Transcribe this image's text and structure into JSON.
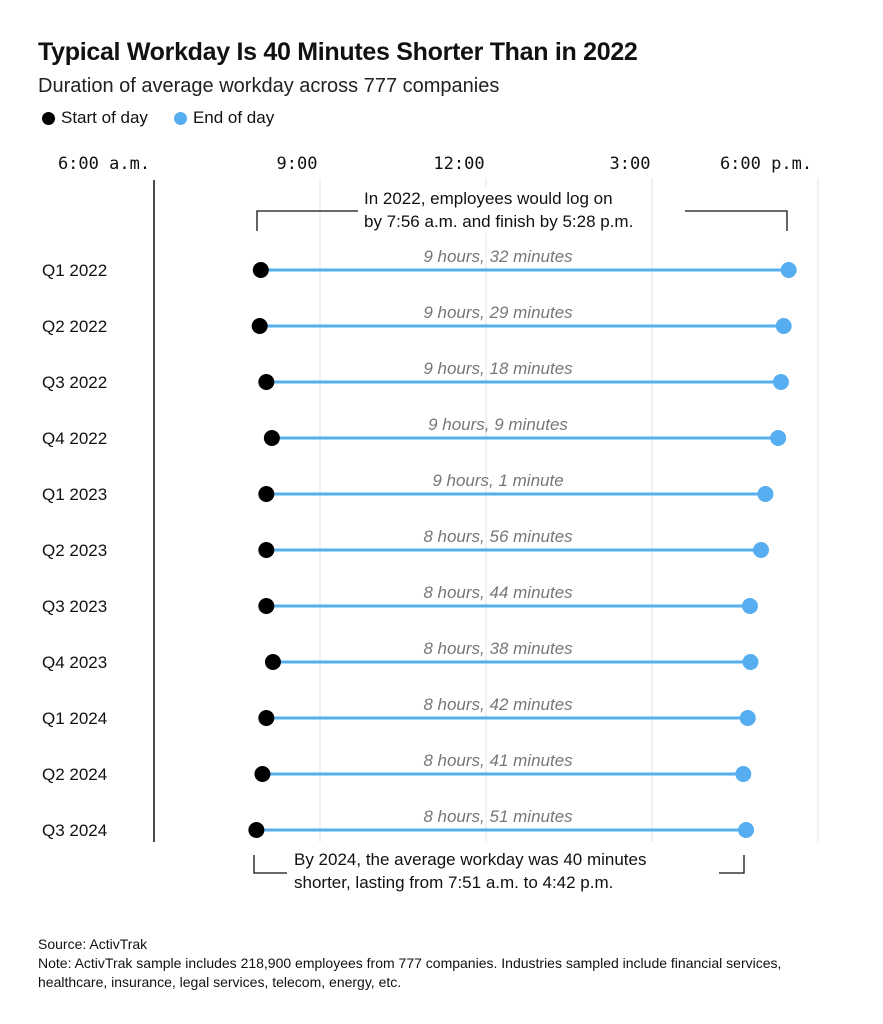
{
  "title": "Typical Workday Is 40 Minutes Shorter Than in 2022",
  "subtitle": "Duration of average workday across 777 companies",
  "legend": {
    "start": {
      "label": "Start of day",
      "color": "#000000"
    },
    "end": {
      "label": "End of day",
      "color": "#56aef0"
    }
  },
  "annotations": {
    "top": "In 2022, employees would log on by 7:56 a.m. and finish by 5:28 p.m.",
    "top_line1": "In 2022, employees would log on",
    "top_line2": "by 7:56 a.m. and finish by 5:28 p.m.",
    "bottom_line1": "By 2024, the average workday was 40 minutes",
    "bottom_line2": "shorter, lasting from 7:51 a.m. to 4:42 p.m."
  },
  "footer": {
    "source": "Source: ActivTrak",
    "note": "Note: ActivTrak sample includes 218,900 employees from 777 companies. Industries sampled include financial services, healthcare, insurance, legal services, telecom, energy, etc."
  },
  "chart_data": {
    "type": "dumbbell",
    "x_ticks": [
      {
        "label": "6:00 a.m.",
        "hour": 6
      },
      {
        "label": "9:00",
        "hour": 9
      },
      {
        "label": "12:00",
        "hour": 12
      },
      {
        "label": "3:00",
        "hour": 15
      },
      {
        "label": "6:00 p.m.",
        "hour": 18
      }
    ],
    "xlim_hours": [
      6,
      18
    ],
    "rows": [
      {
        "label": "Q1 2022",
        "start": 7.93,
        "end": 17.47,
        "duration": "9 hours, 32 minutes"
      },
      {
        "label": "Q2 2022",
        "start": 7.91,
        "end": 17.38,
        "duration": "9 hours, 29 minutes"
      },
      {
        "label": "Q3 2022",
        "start": 8.03,
        "end": 17.33,
        "duration": "9 hours, 18 minutes"
      },
      {
        "label": "Q4 2022",
        "start": 8.13,
        "end": 17.28,
        "duration": "9 hours, 9 minutes"
      },
      {
        "label": "Q1 2023",
        "start": 8.03,
        "end": 17.05,
        "duration": "9 hours, 1 minute"
      },
      {
        "label": "Q2 2023",
        "start": 8.03,
        "end": 16.97,
        "duration": "8 hours, 56 minutes"
      },
      {
        "label": "Q3 2023",
        "start": 8.03,
        "end": 16.77,
        "duration": "8 hours, 44 minutes"
      },
      {
        "label": "Q4 2023",
        "start": 8.15,
        "end": 16.78,
        "duration": "8 hours, 38 minutes"
      },
      {
        "label": "Q1 2024",
        "start": 8.03,
        "end": 16.73,
        "duration": "8 hours, 42 minutes"
      },
      {
        "label": "Q2 2024",
        "start": 7.96,
        "end": 16.65,
        "duration": "8 hours, 41 minutes"
      },
      {
        "label": "Q3 2024",
        "start": 7.85,
        "end": 16.7,
        "duration": "8 hours, 51 minutes"
      }
    ]
  }
}
